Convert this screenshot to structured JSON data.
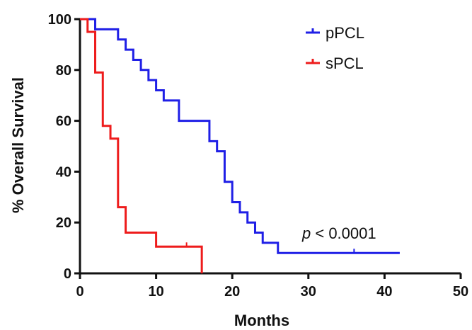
{
  "chart_data": {
    "type": "line",
    "title": "",
    "xlabel": "Months",
    "ylabel": "% Overall Survival",
    "xlim": [
      0,
      50
    ],
    "ylim": [
      0,
      100
    ],
    "x_ticks": [
      "0",
      "10",
      "20",
      "30",
      "40",
      "50"
    ],
    "y_ticks": [
      "0",
      "20",
      "40",
      "60",
      "80",
      "100"
    ],
    "grid": false,
    "legend_position": "top-right",
    "annotation": "p < 0.0001",
    "series": [
      {
        "name": "pPCL",
        "color": "#1f1fe6",
        "x": [
          0,
          2,
          5,
          6,
          7,
          8,
          9,
          10,
          11,
          13,
          17,
          18,
          19,
          20,
          21,
          22,
          23,
          24,
          26,
          42
        ],
        "y": [
          100,
          96,
          92,
          88,
          84,
          80,
          76,
          72,
          68,
          60,
          52,
          48,
          36,
          28,
          24,
          20,
          16,
          12,
          8,
          8
        ],
        "censored": [
          {
            "x": 36,
            "y": 8
          }
        ]
      },
      {
        "name": "sPCL",
        "color": "#ee1c1c",
        "x": [
          0,
          1,
          2,
          3,
          4,
          5,
          6,
          10,
          16
        ],
        "y": [
          100,
          95,
          79,
          58,
          53,
          26,
          16,
          10.5,
          0
        ],
        "censored": [
          {
            "x": 14,
            "y": 10.5
          }
        ]
      }
    ]
  }
}
